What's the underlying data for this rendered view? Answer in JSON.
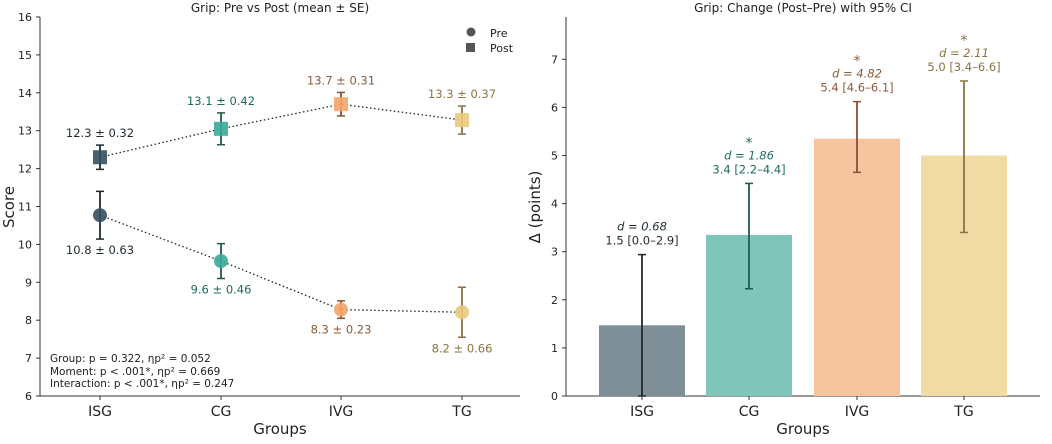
{
  "chart_data": [
    {
      "type": "line",
      "title": "Grip: Pre vs Post (mean ± SE)",
      "xlabel": "Groups",
      "ylabel": "Score",
      "ylim": [
        6,
        16
      ],
      "yticks": [
        "6",
        "7",
        "8",
        "9",
        "10",
        "11",
        "12",
        "13",
        "14",
        "15",
        "16"
      ],
      "categories": [
        "ISG",
        "CG",
        "IVG",
        "TG"
      ],
      "legend": {
        "placement": "top-right",
        "entries": [
          "Pre",
          "Post"
        ]
      },
      "series": [
        {
          "name": "Pre",
          "marker": "circle",
          "values": [
            10.77,
            9.56,
            8.28,
            8.21
          ],
          "se": [
            0.63,
            0.46,
            0.23,
            0.66
          ],
          "labels": [
            "10.8 ± 0.63",
            "9.6 ± 0.46",
            "8.3 ± 0.23",
            "8.2 ± 0.66"
          ]
        },
        {
          "name": "Post",
          "marker": "square",
          "values": [
            12.3,
            13.05,
            13.7,
            13.28
          ],
          "se": [
            0.32,
            0.42,
            0.31,
            0.37
          ],
          "labels": [
            "12.3 ± 0.32",
            "13.1 ± 0.42",
            "13.7 ± 0.31",
            "13.3 ± 0.37"
          ]
        }
      ],
      "annotations": [
        "Group: p = 0.322, ηp² = 0.052",
        "Moment: p < .001*, ηp² = 0.669",
        "Interaction: p < .001*, ηp² = 0.247"
      ]
    },
    {
      "type": "bar",
      "title": "Grip: Change (Post–Pre) with 95% CI",
      "xlabel": "Groups",
      "ylabel": "Δ (points)",
      "ylim": [
        0,
        7.88
      ],
      "yticks": [
        "0",
        "1",
        "2",
        "3",
        "4",
        "5",
        "6",
        "7"
      ],
      "categories": [
        "ISG",
        "CG",
        "IVG",
        "TG"
      ],
      "values": [
        1.47,
        3.35,
        5.35,
        5.0
      ],
      "ci": [
        [
          0.0,
          2.94
        ],
        [
          2.23,
          4.42
        ],
        [
          4.65,
          6.12
        ],
        [
          3.4,
          6.55
        ]
      ],
      "d_labels": [
        "d = 0.68",
        "d = 1.86",
        "d = 4.82",
        "d = 2.11"
      ],
      "ci_labels": [
        "1.5 [0.0–2.9]",
        "3.4 [2.2–4.4]",
        "5.4 [4.6–6.1]",
        "5.0 [3.4–6.6]"
      ],
      "significant": [
        false,
        true,
        true,
        true
      ],
      "sig_marker": "*"
    }
  ],
  "colors": {
    "marker": [
      "#36505f",
      "#3aa89a",
      "#f4a46a",
      "#e9c97a"
    ],
    "text": [
      "#1f2a30",
      "#1e6b5e",
      "#8a5a3a",
      "#8a7440"
    ],
    "bar": [
      "#7f8f97",
      "#80c5ba",
      "#f6c59f",
      "#f0dba4"
    ],
    "errbar": [
      "#1f2a30",
      "#1e5a50",
      "#8a5030",
      "#8a7440"
    ]
  }
}
